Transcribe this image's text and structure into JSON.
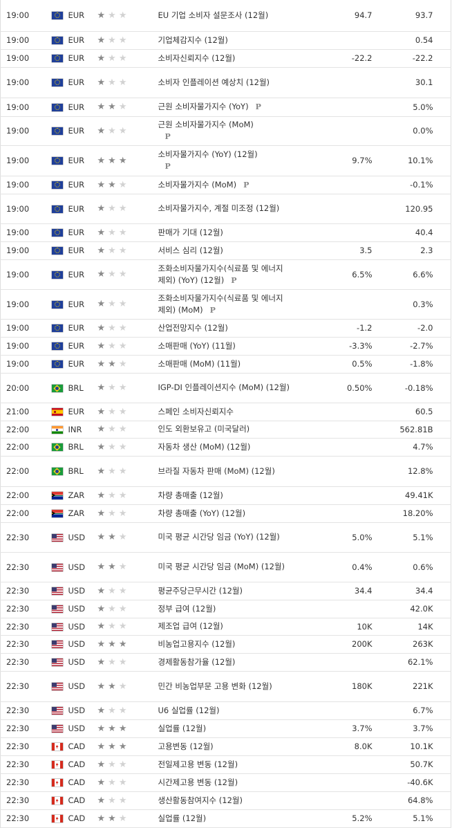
{
  "rows": [
    {
      "time": "19:00",
      "country": "eu",
      "cur": "EUR",
      "imp": 1,
      "event": "EU 기업 소비자 설문조사 (12월)",
      "p": false,
      "forecast": "94.7",
      "previous": "93.7",
      "h": 45
    },
    {
      "time": "19:00",
      "country": "eu",
      "cur": "EUR",
      "imp": 1,
      "event": "기업체감지수 (12월)",
      "p": false,
      "forecast": "",
      "previous": "0.54",
      "h": 26
    },
    {
      "time": "19:00",
      "country": "eu",
      "cur": "EUR",
      "imp": 1,
      "event": "소비자신뢰지수 (12월)",
      "p": false,
      "forecast": "-22.2",
      "previous": "-22.2",
      "h": 26
    },
    {
      "time": "19:00",
      "country": "eu",
      "cur": "EUR",
      "imp": 1,
      "event": "소비자 인플레이션 예상치 (12월)",
      "p": false,
      "forecast": "",
      "previous": "30.1",
      "h": 44
    },
    {
      "time": "19:00",
      "country": "eu",
      "cur": "EUR",
      "imp": 2,
      "event": "근원 소비자물가지수 (YoY)",
      "p": true,
      "forecast": "",
      "previous": "5.0%",
      "h": 27
    },
    {
      "time": "19:00",
      "country": "eu",
      "cur": "EUR",
      "imp": 1,
      "event": "근원 소비자물가지수 (MoM)",
      "p": true,
      "pbreak": true,
      "forecast": "",
      "previous": "0.0%",
      "h": 42
    },
    {
      "time": "19:00",
      "country": "eu",
      "cur": "EUR",
      "imp": 3,
      "event": "소비자물가지수 (YoY) (12월)",
      "p": true,
      "pbreak": true,
      "forecast": "9.7%",
      "previous": "10.1%",
      "h": 44
    },
    {
      "time": "19:00",
      "country": "eu",
      "cur": "EUR",
      "imp": 2,
      "event": "소비자물가지수 (MoM)",
      "p": true,
      "forecast": "",
      "previous": "-0.1%",
      "h": 26
    },
    {
      "time": "19:00",
      "country": "eu",
      "cur": "EUR",
      "imp": 1,
      "event": "소비자물가지수, 계절 미조정 (12월)",
      "p": false,
      "forecast": "",
      "previous": "120.95",
      "h": 43
    },
    {
      "time": "19:00",
      "country": "eu",
      "cur": "EUR",
      "imp": 1,
      "event": "판매가 기대 (12월)",
      "p": false,
      "forecast": "",
      "previous": "40.4",
      "h": 26
    },
    {
      "time": "19:00",
      "country": "eu",
      "cur": "EUR",
      "imp": 1,
      "event": "서비스 심리 (12월)",
      "p": false,
      "forecast": "3.5",
      "previous": "2.3",
      "h": 26
    },
    {
      "time": "19:00",
      "country": "eu",
      "cur": "EUR",
      "imp": 1,
      "event": "조화소비자물가지수(식료품 및 에너지 제외) (YoY) (12월)",
      "p": true,
      "forecast": "6.5%",
      "previous": "6.6%",
      "h": 43
    },
    {
      "time": "19:00",
      "country": "eu",
      "cur": "EUR",
      "imp": 1,
      "event": "조화소비자물가지수(식료품 및 에너지 제외) (MoM)",
      "p": true,
      "forecast": "",
      "previous": "0.3%",
      "h": 43
    },
    {
      "time": "19:00",
      "country": "eu",
      "cur": "EUR",
      "imp": 1,
      "event": "산업전망지수 (12월)",
      "p": false,
      "forecast": "-1.2",
      "previous": "-2.0",
      "h": 26
    },
    {
      "time": "19:00",
      "country": "eu",
      "cur": "EUR",
      "imp": 1,
      "event": "소매판매 (YoY) (11월)",
      "p": false,
      "forecast": "-3.3%",
      "previous": "-2.7%",
      "h": 26
    },
    {
      "time": "19:00",
      "country": "eu",
      "cur": "EUR",
      "imp": 2,
      "event": "소매판매 (MoM) (11월)",
      "p": false,
      "forecast": "0.5%",
      "previous": "-1.8%",
      "h": 26
    },
    {
      "time": "20:00",
      "country": "br",
      "cur": "BRL",
      "imp": 1,
      "event": "IGP-DI 인플레이션지수 (MoM) (12월)",
      "p": false,
      "forecast": "0.50%",
      "previous": "-0.18%",
      "h": 43
    },
    {
      "time": "21:00",
      "country": "es",
      "cur": "EUR",
      "imp": 1,
      "event": "스페인 소비자신뢰지수",
      "p": false,
      "forecast": "",
      "previous": "60.5",
      "h": 26
    },
    {
      "time": "22:00",
      "country": "in",
      "cur": "INR",
      "imp": 1,
      "event": "인도 외환보유고 (미국달러)",
      "p": false,
      "forecast": "",
      "previous": "562.81B",
      "h": 25
    },
    {
      "time": "22:00",
      "country": "br",
      "cur": "BRL",
      "imp": 1,
      "event": "자동차 생산 (MoM) (12월)",
      "p": false,
      "forecast": "",
      "previous": "4.7%",
      "h": 26
    },
    {
      "time": "22:00",
      "country": "br",
      "cur": "BRL",
      "imp": 1,
      "event": "브라질 자동차 판매 (MoM) (12월)",
      "p": false,
      "forecast": "",
      "previous": "12.8%",
      "h": 44
    },
    {
      "time": "22:00",
      "country": "za",
      "cur": "ZAR",
      "imp": 1,
      "event": "차량 총매출 (12월)",
      "p": false,
      "forecast": "",
      "previous": "49.41K",
      "h": 26
    },
    {
      "time": "22:00",
      "country": "za",
      "cur": "ZAR",
      "imp": 1,
      "event": "차량 총매출 (YoY) (12월)",
      "p": false,
      "forecast": "",
      "previous": "18.20%",
      "h": 26
    },
    {
      "time": "22:30",
      "country": "us",
      "cur": "USD",
      "imp": 2,
      "event": "미국 평균 시간당 임금 (YoY) (12월)",
      "p": false,
      "forecast": "5.0%",
      "previous": "5.1%",
      "h": 43
    },
    {
      "time": "22:30",
      "country": "us",
      "cur": "USD",
      "imp": 2,
      "event": "미국 평균 시간당 임금 (MoM) (12월)",
      "p": false,
      "forecast": "0.4%",
      "previous": "0.6%",
      "h": 43
    },
    {
      "time": "22:30",
      "country": "us",
      "cur": "USD",
      "imp": 1,
      "event": "평균주당근무시간 (12월)",
      "p": false,
      "forecast": "34.4",
      "previous": "34.4",
      "h": 26
    },
    {
      "time": "22:30",
      "country": "us",
      "cur": "USD",
      "imp": 1,
      "event": "정부 급여 (12월)",
      "p": false,
      "forecast": "",
      "previous": "42.0K",
      "h": 26
    },
    {
      "time": "22:30",
      "country": "us",
      "cur": "USD",
      "imp": 1,
      "event": "제조업 급여 (12월)",
      "p": false,
      "forecast": "10K",
      "previous": "14K",
      "h": 25
    },
    {
      "time": "22:30",
      "country": "us",
      "cur": "USD",
      "imp": 3,
      "event": "비농업고용지수 (12월)",
      "p": false,
      "forecast": "200K",
      "previous": "263K",
      "h": 26
    },
    {
      "time": "22:30",
      "country": "us",
      "cur": "USD",
      "imp": 1,
      "event": "경제활동참가율 (12월)",
      "p": false,
      "forecast": "",
      "previous": "62.1%",
      "h": 26
    },
    {
      "time": "22:30",
      "country": "us",
      "cur": "USD",
      "imp": 2,
      "event": "민간 비농업부문 고용 변화 (12월)",
      "p": false,
      "forecast": "180K",
      "previous": "221K",
      "h": 44
    },
    {
      "time": "22:30",
      "country": "us",
      "cur": "USD",
      "imp": 1,
      "event": "U6 실업률 (12월)",
      "p": false,
      "forecast": "",
      "previous": "6.7%",
      "h": 26
    },
    {
      "time": "22:30",
      "country": "us",
      "cur": "USD",
      "imp": 3,
      "event": "실업률 (12월)",
      "p": false,
      "forecast": "3.7%",
      "previous": "3.7%",
      "h": 26
    },
    {
      "time": "22:30",
      "country": "ca",
      "cur": "CAD",
      "imp": 3,
      "event": "고용변동 (12월)",
      "p": false,
      "forecast": "8.0K",
      "previous": "10.1K",
      "h": 26
    },
    {
      "time": "22:30",
      "country": "ca",
      "cur": "CAD",
      "imp": 1,
      "event": "전일제고용 변동 (12월)",
      "p": false,
      "forecast": "",
      "previous": "50.7K",
      "h": 26
    },
    {
      "time": "22:30",
      "country": "ca",
      "cur": "CAD",
      "imp": 1,
      "event": "시간제고용 변동 (12월)",
      "p": false,
      "forecast": "",
      "previous": "-40.6K",
      "h": 26
    },
    {
      "time": "22:30",
      "country": "ca",
      "cur": "CAD",
      "imp": 1,
      "event": "생산활동참여지수 (12월)",
      "p": false,
      "forecast": "",
      "previous": "64.8%",
      "h": 26
    },
    {
      "time": "22:30",
      "country": "ca",
      "cur": "CAD",
      "imp": 2,
      "event": "실업률 (12월)",
      "p": false,
      "forecast": "5.2%",
      "previous": "5.1%",
      "h": 26
    }
  ],
  "badge_label": "P",
  "star_glyph": "★",
  "colors": {
    "star_on": "#8a8a8a",
    "star_off": "#d2d2d2",
    "border": "#e3e3e3"
  }
}
